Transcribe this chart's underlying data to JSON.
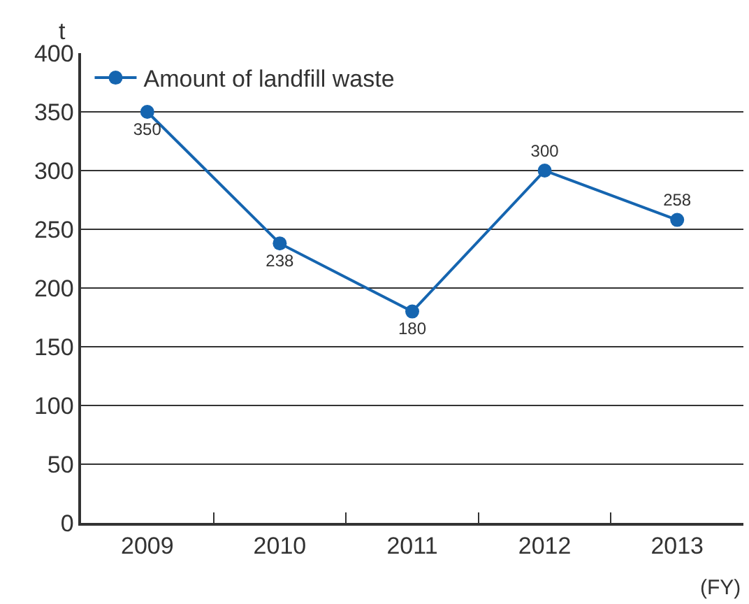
{
  "chart_data": {
    "type": "line",
    "ylabel": "t",
    "xlabel": "(FY)",
    "categories": [
      "2009",
      "2010",
      "2011",
      "2012",
      "2013"
    ],
    "series": [
      {
        "name": "Amount of landfill waste",
        "color": "#1565b0",
        "values": [
          350,
          238,
          180,
          300,
          258
        ]
      }
    ],
    "ylim": [
      0,
      400
    ],
    "yticks": [
      0,
      50,
      100,
      150,
      200,
      250,
      300,
      350,
      400
    ],
    "grid": "y",
    "legend": "top left",
    "marker": "circle",
    "line_style": "solid",
    "data_labels": true
  }
}
